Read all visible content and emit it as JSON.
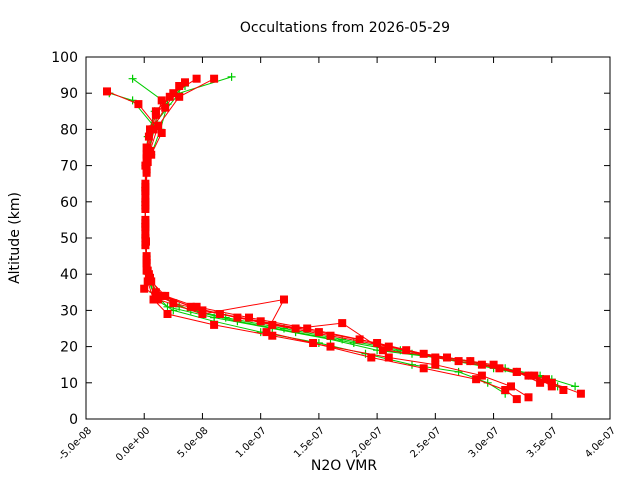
{
  "chart_data": {
    "type": "line",
    "title": "Occultations from 2026-05-29",
    "xlabel": "N2O VMR",
    "ylabel": "Altitude (km)",
    "xlim": [
      -5e-08,
      4e-07
    ],
    "ylim": [
      0,
      100
    ],
    "x_ticks": [
      -5e-08,
      0,
      5e-08,
      1e-07,
      1.5e-07,
      2e-07,
      2.5e-07,
      3e-07,
      3.5e-07,
      4e-07
    ],
    "x_tick_labels": [
      "-5.0e-08",
      "0.0e+00",
      "5.0e-08",
      "1.0e-07",
      "1.5e-07",
      "2.0e-07",
      "2.5e-07",
      "3.0e-07",
      "3.5e-07",
      "4.0e-07"
    ],
    "y_ticks": [
      0,
      10,
      20,
      30,
      40,
      50,
      60,
      70,
      80,
      90,
      100
    ],
    "y_tick_labels": [
      "0",
      "10",
      "20",
      "30",
      "40",
      "50",
      "60",
      "70",
      "80",
      "90",
      "100"
    ],
    "grid": false,
    "legend": "none",
    "series": [
      {
        "color": "#00cc00",
        "marker": "plus",
        "profiles": [
          {
            "x": [
              3.55e-07,
              3.4e-07,
              3.1e-07,
              2.6e-07,
              2.2e-07,
              1.7e-07,
              1.2e-07,
              7e-08,
              3e-08,
              1e-08,
              4e-09,
              2e-09,
              1.5e-09,
              1e-09,
              1e-09,
              1e-09,
              2e-09,
              5e-09,
              1e-08,
              3e-08,
              7.5e-08
            ],
            "y": [
              9,
              12,
              14,
              17,
              19,
              22,
              25,
              28,
              31,
              35,
              40,
              45,
              50,
              55,
              60,
              65,
              70,
              75,
              82,
              90,
              94.5
            ]
          },
          {
            "x": [
              3.7e-07,
              3.5e-07,
              3.2e-07,
              2.8e-07,
              2.3e-07,
              1.8e-07,
              1.3e-07,
              8e-08,
              4e-08,
              1.2e-08,
              5e-09,
              2e-09,
              1.5e-09,
              1e-09,
              1e-09,
              1e-09,
              2e-09,
              4e-09,
              8e-09,
              -1e-08,
              -3e-08
            ],
            "y": [
              9,
              11,
              13,
              16,
              18,
              21,
              24,
              27,
              30,
              34,
              39,
              44,
              49,
              54,
              59,
              64,
              69,
              74,
              81,
              88,
              90
            ]
          },
          {
            "x": [
              3.1e-07,
              2.95e-07,
              2.7e-07,
              2.3e-07,
              1.9e-07,
              1.5e-07,
              1e-07,
              6e-08,
              2.5e-08,
              1e-08,
              4e-09,
              2e-09,
              1e-09,
              1e-09,
              1e-09,
              1e-09,
              2e-09,
              6e-09,
              1.4e-08,
              2e-08,
              -1e-08
            ],
            "y": [
              7,
              10,
              13,
              15,
              18,
              21,
              24,
              27,
              30,
              33,
              38,
              43,
              48,
              53,
              58,
              63,
              68,
              73,
              80,
              87,
              94
            ]
          },
          {
            "x": [
              3.3e-07,
              3e-07,
              2.5e-07,
              2e-07,
              1.6e-07,
              1.1e-07,
              6e-08,
              2e-08,
              8e-09,
              3e-09,
              1e-09,
              1e-09,
              1e-09,
              3e-09,
              9e-09,
              3.5e-08
            ],
            "y": [
              12,
              14,
              17,
              19,
              22,
              25,
              28,
              31,
              35,
              40,
              50,
              60,
              70,
              78,
              85,
              92
            ]
          }
        ]
      },
      {
        "color": "#ff0000",
        "marker": "square",
        "profiles": [
          {
            "x": [
              3.6e-07,
              3.45e-07,
              3.2e-07,
              2.8e-07,
              2.4e-07,
              2e-07,
              1.5e-07,
              1e-07,
              5e-08,
              1.5e-08,
              5e-09,
              2e-09,
              1.5e-09,
              1e-09,
              1e-09,
              1e-09,
              2e-09,
              5e-09,
              1.2e-08,
              3e-08,
              6e-08
            ],
            "y": [
              8,
              11,
              13,
              16,
              18,
              21,
              24,
              27,
              30,
              34,
              39,
              44,
              49,
              54,
              59,
              64,
              69,
              74,
              81,
              89,
              94
            ]
          },
          {
            "x": [
              3.3e-07,
              3.15e-07,
              2.9e-07,
              2.5e-07,
              2.1e-07,
              1.6e-07,
              1.1e-07,
              6e-08,
              2e-08,
              8e-09,
              3e-09,
              2e-09,
              1e-09,
              1e-09,
              1e-09,
              1e-09,
              2e-09,
              6e-09,
              1.5e-08,
              -5e-09,
              -3.2e-08
            ],
            "y": [
              6,
              9,
              12,
              15,
              17,
              20,
              23,
              26,
              29,
              33,
              38,
              43,
              48,
              53,
              58,
              63,
              68,
              73,
              79,
              87,
              90.5
            ]
          },
          {
            "x": [
              3.75e-07,
              3.5e-07,
              3.3e-07,
              2.9e-07,
              2.5e-07,
              2.1e-07,
              1.6e-07,
              1.1e-07,
              6.5e-08,
              2.5e-08,
              0,
              3e-09,
              1e-09,
              1e-09,
              1e-09,
              2e-09,
              5e-09,
              1e-08,
              2.5e-08,
              4.5e-08
            ],
            "y": [
              7,
              10,
              12,
              15,
              17,
              20,
              23,
              26,
              29,
              32,
              36,
              41,
              50,
              60,
              70,
              75,
              80,
              85,
              90,
              94
            ]
          },
          {
            "x": [
              3.4e-07,
              3.2e-07,
              3e-07,
              2.6e-07,
              2.05e-07,
              1.7e-07,
              1.3e-07,
              8e-08,
              4e-08,
              1e-08,
              4e-09,
              2e-09,
              1e-09,
              1e-09,
              2e-09,
              4e-09,
              1e-08,
              2.2e-08,
              3.5e-08
            ],
            "y": [
              10,
              13,
              15,
              17,
              19,
              26.5,
              25,
              28,
              31,
              35,
              40,
              45,
              55,
              65,
              72,
              78,
              84,
              89,
              93
            ]
          },
          {
            "x": [
              3.5e-07,
              3.35e-07,
              3.05e-07,
              2.7e-07,
              2.25e-07,
              1.85e-07,
              1.4e-07,
              9e-08,
              4.5e-08,
              1.8e-08,
              6e-09,
              2e-09,
              1e-09,
              1e-09,
              2e-09,
              7e-09,
              1.8e-08,
              3e-08
            ],
            "y": [
              9,
              12,
              14,
              16,
              19,
              22,
              25,
              28,
              31,
              34,
              38,
              43,
              53,
              63,
              73,
              80,
              86,
              92
            ]
          },
          {
            "x": [
              3.2e-07,
              3.1e-07,
              2.85e-07,
              2.4e-07,
              1.95e-07,
              1.45e-07,
              1.05e-07,
              1.2e-07,
              5e-08,
              1.2e-08,
              2e-09,
              1e-09,
              1e-09,
              3e-09,
              8e-09,
              1.5e-08
            ],
            "y": [
              5.5,
              8,
              11,
              14,
              17,
              21,
              24,
              33,
              29,
              33,
              41,
              51,
              61,
              71,
              80,
              88
            ]
          }
        ]
      }
    ]
  }
}
